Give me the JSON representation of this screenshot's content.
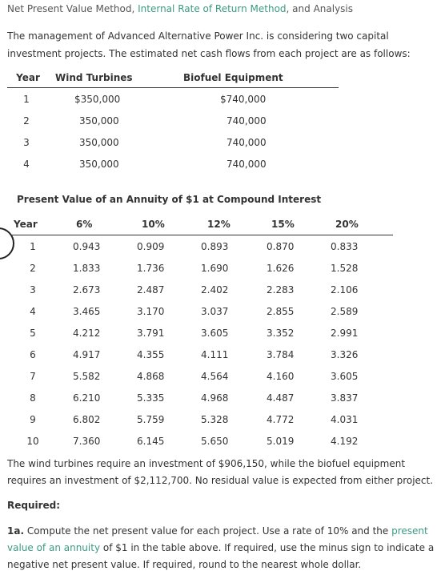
{
  "title": {
    "part1": "Net Present Value Method, ",
    "part2": "Internal Rate of Return Method",
    "part3": ", and Analysis"
  },
  "intro": "The management of Advanced Alternative Power Inc. is considering two capital investment projects. The estimated net cash flows from each project are as follows:",
  "cash_table": {
    "headers": [
      "Year",
      "Wind Turbines",
      "Biofuel Equipment"
    ],
    "rows": [
      [
        "1",
        "$350,000",
        "$740,000"
      ],
      [
        "2",
        "350,000",
        "740,000"
      ],
      [
        "3",
        "350,000",
        "740,000"
      ],
      [
        "4",
        "350,000",
        "740,000"
      ]
    ]
  },
  "annuity_table": {
    "title": "Present Value of an Annuity of $1 at Compound Interest",
    "headers": [
      "Year",
      "6%",
      "10%",
      "12%",
      "15%",
      "20%"
    ],
    "rows": [
      [
        "1",
        "0.943",
        "0.909",
        "0.893",
        "0.870",
        "0.833"
      ],
      [
        "2",
        "1.833",
        "1.736",
        "1.690",
        "1.626",
        "1.528"
      ],
      [
        "3",
        "2.673",
        "2.487",
        "2.402",
        "2.283",
        "2.106"
      ],
      [
        "4",
        "3.465",
        "3.170",
        "3.037",
        "2.855",
        "2.589"
      ],
      [
        "5",
        "4.212",
        "3.791",
        "3.605",
        "3.352",
        "2.991"
      ],
      [
        "6",
        "4.917",
        "4.355",
        "4.111",
        "3.784",
        "3.326"
      ],
      [
        "7",
        "5.582",
        "4.868",
        "4.564",
        "4.160",
        "3.605"
      ],
      [
        "8",
        "6.210",
        "5.335",
        "4.968",
        "4.487",
        "3.837"
      ],
      [
        "9",
        "6.802",
        "5.759",
        "5.328",
        "4.772",
        "4.031"
      ],
      [
        "10",
        "7.360",
        "6.145",
        "5.650",
        "5.019",
        "4.192"
      ]
    ]
  },
  "investment_text": "The wind turbines require an investment of $906,150, while the biofuel equipment requires an investment of $2,112,700. No residual value is expected from either project.",
  "required_label": "Required:",
  "question": {
    "label": "1a.",
    "text1": " Compute the net present value for each project. Use a rate of 10% and the ",
    "link": "present value of an annuity",
    "text2": " of $1 in the table above. If required, use the minus sign to indicate a negative net present value. If required, round to the nearest whole dollar."
  }
}
